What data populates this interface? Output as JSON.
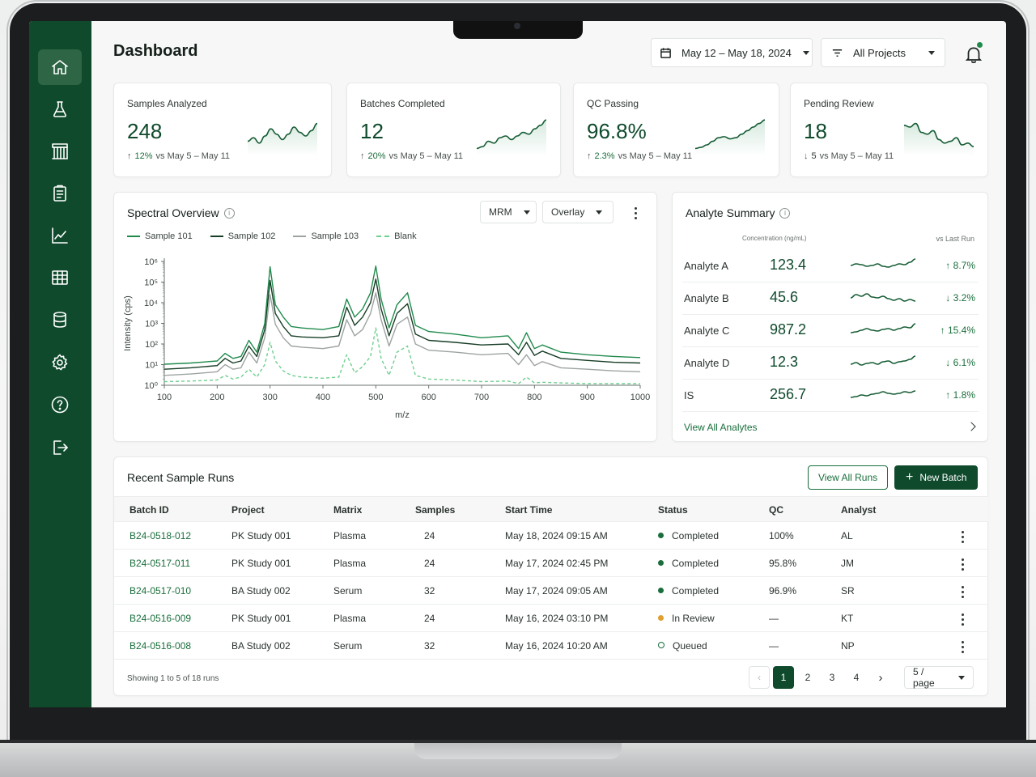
{
  "header": {
    "title": "Dashboard",
    "date_range": "May 12 – May 18, 2024",
    "project_filter": "All Projects"
  },
  "nav": {
    "items": [
      "home-icon",
      "flask-icon",
      "rack-icon",
      "clipboard-icon",
      "trend-chart-icon",
      "table-grid-icon",
      "database-icon",
      "gear-icon",
      "help-icon",
      "logout-icon"
    ],
    "active_index": 0
  },
  "kpis": [
    {
      "label": "Samples Analyzed",
      "value": "248",
      "direction": "up",
      "pct": "12%",
      "period": "vs May 5 – May 11",
      "spark": [
        0.35,
        0.45,
        0.3,
        0.5,
        0.7,
        0.55,
        0.4,
        0.55,
        0.75,
        0.6,
        0.5,
        0.65,
        0.85
      ]
    },
    {
      "label": "Batches Completed",
      "value": "12",
      "direction": "up",
      "pct": "20%",
      "period": "vs May 5 – May 11",
      "spark": [
        0.15,
        0.2,
        0.35,
        0.3,
        0.45,
        0.5,
        0.4,
        0.5,
        0.6,
        0.55,
        0.7,
        0.8,
        0.95
      ]
    },
    {
      "label": "QC Passing",
      "value": "96.8%",
      "direction": "up",
      "pct": "2.3%",
      "period": "vs May 5 – May 11",
      "spark": [
        0.15,
        0.18,
        0.25,
        0.35,
        0.45,
        0.48,
        0.42,
        0.45,
        0.55,
        0.65,
        0.75,
        0.85,
        0.95
      ]
    },
    {
      "label": "Pending Review",
      "value": "18",
      "direction": "down",
      "pct": "5",
      "period": "vs May 5 – May 11",
      "spark": [
        0.8,
        0.75,
        0.85,
        0.6,
        0.55,
        0.65,
        0.4,
        0.3,
        0.35,
        0.45,
        0.25,
        0.3,
        0.2
      ]
    }
  ],
  "spectral": {
    "title": "Spectral Overview",
    "mode": "MRM",
    "view": "Overlay"
  },
  "chart_data": {
    "type": "line",
    "x": [
      100,
      150,
      200,
      215,
      230,
      245,
      260,
      275,
      290,
      300,
      310,
      325,
      340,
      360,
      400,
      430,
      445,
      460,
      475,
      490,
      500,
      510,
      525,
      540,
      560,
      575,
      600,
      650,
      700,
      750,
      770,
      785,
      800,
      815,
      850,
      900,
      950,
      1000
    ],
    "series": [
      {
        "name": "Sample 101",
        "color": "#1f8a4c",
        "dash": false,
        "values": [
          10.5,
          12,
          15,
          35,
          20,
          25,
          150,
          40,
          1000,
          550000,
          8000,
          2000,
          700,
          600,
          500,
          700,
          15000,
          2000,
          5000,
          30000,
          600000,
          15000,
          600,
          8000,
          30000,
          800,
          400,
          300,
          200,
          250,
          60,
          350,
          60,
          90,
          40,
          30,
          25,
          22
        ]
      },
      {
        "name": "Sample 102",
        "color": "#173d26",
        "dash": false,
        "values": [
          6,
          7,
          9,
          20,
          12,
          15,
          80,
          25,
          500,
          120000,
          3000,
          700,
          250,
          220,
          200,
          250,
          6000,
          800,
          2000,
          10000,
          140000,
          5000,
          250,
          3000,
          9000,
          300,
          150,
          120,
          90,
          100,
          30,
          120,
          28,
          45,
          20,
          16,
          13,
          12
        ]
      },
      {
        "name": "Sample 103",
        "color": "#9ea3a1",
        "dash": false,
        "values": [
          3,
          3.5,
          4.5,
          10,
          6,
          7,
          40,
          12,
          200,
          25000,
          900,
          200,
          80,
          70,
          60,
          80,
          1500,
          250,
          500,
          3000,
          30000,
          1500,
          80,
          900,
          2000,
          100,
          50,
          40,
          30,
          35,
          10,
          30,
          9,
          14,
          7,
          6,
          5,
          4.5
        ]
      },
      {
        "name": "Blank",
        "color": "#6fcf8f",
        "dash": true,
        "values": [
          1.5,
          1.6,
          1.8,
          3,
          2,
          2.5,
          6,
          2.5,
          10,
          120,
          15,
          5,
          3,
          2.5,
          2.2,
          2.5,
          30,
          4,
          8,
          25,
          600,
          20,
          3,
          40,
          80,
          3,
          2,
          1.8,
          1.5,
          1.6,
          1.2,
          2.5,
          1.3,
          1.4,
          1.3,
          1.2,
          1.2,
          1.2
        ]
      }
    ],
    "xlabel": "m/z",
    "ylabel": "Intensity (cps)",
    "xlim": [
      100,
      1000
    ],
    "ylim": [
      1,
      1000000
    ],
    "y_scale": "log",
    "xticks": [
      100,
      200,
      300,
      400,
      500,
      600,
      700,
      800,
      900,
      1000
    ],
    "yticks": [
      "10⁰",
      "10¹",
      "10²",
      "10³",
      "10⁴",
      "10⁵",
      "10⁶"
    ],
    "legend_position": "top-left",
    "grid": false
  },
  "analytes": {
    "title": "Analyte Summary",
    "col_concentration": "Concentration (ng/mL)",
    "col_vs": "vs Last Run",
    "rows": [
      {
        "name": "Analyte A",
        "value": "123.4",
        "direction": "up",
        "delta": "8.7%",
        "spark": [
          0.5,
          0.6,
          0.55,
          0.45,
          0.5,
          0.6,
          0.45,
          0.4,
          0.5,
          0.6,
          0.55,
          0.7,
          0.9
        ]
      },
      {
        "name": "Analyte B",
        "value": "45.6",
        "direction": "down",
        "delta": "3.2%",
        "spark": [
          0.5,
          0.7,
          0.6,
          0.75,
          0.55,
          0.5,
          0.6,
          0.45,
          0.35,
          0.45,
          0.3,
          0.4,
          0.3
        ]
      },
      {
        "name": "Analyte C",
        "value": "987.2",
        "direction": "up",
        "delta": "15.4%",
        "spark": [
          0.35,
          0.4,
          0.5,
          0.6,
          0.5,
          0.45,
          0.55,
          0.6,
          0.5,
          0.6,
          0.7,
          0.65,
          0.9
        ]
      },
      {
        "name": "Analyte D",
        "value": "12.3",
        "direction": "down",
        "delta": "6.1%",
        "spark": [
          0.4,
          0.5,
          0.35,
          0.45,
          0.5,
          0.4,
          0.55,
          0.6,
          0.45,
          0.55,
          0.6,
          0.7,
          0.9
        ]
      },
      {
        "name": "IS",
        "value": "256.7",
        "direction": "up",
        "delta": "1.8%",
        "spark": [
          0.35,
          0.4,
          0.5,
          0.45,
          0.55,
          0.6,
          0.7,
          0.6,
          0.55,
          0.6,
          0.7,
          0.65,
          0.75
        ]
      }
    ],
    "view_all": "View All Analytes"
  },
  "runs": {
    "title": "Recent Sample Runs",
    "view_all": "View All Runs",
    "new_batch": "New Batch",
    "columns": [
      "Batch ID",
      "Project",
      "Matrix",
      "Samples",
      "Start Time",
      "Status",
      "QC",
      "Analyst"
    ],
    "rows": [
      {
        "batch": "B24-0518-012",
        "project": "PK Study 001",
        "matrix": "Plasma",
        "samples": "24",
        "start": "May 18, 2024 09:15 AM",
        "status": "Completed",
        "status_color": "#1a6e3c",
        "qc": "100%",
        "analyst": "AL"
      },
      {
        "batch": "B24-0517-011",
        "project": "PK Study 001",
        "matrix": "Plasma",
        "samples": "24",
        "start": "May 17, 2024 02:45 PM",
        "status": "Completed",
        "status_color": "#1a6e3c",
        "qc": "95.8%",
        "analyst": "JM"
      },
      {
        "batch": "B24-0517-010",
        "project": "BA Study 002",
        "matrix": "Serum",
        "samples": "32",
        "start": "May 17, 2024 09:05 AM",
        "status": "Completed",
        "status_color": "#1a6e3c",
        "qc": "96.9%",
        "analyst": "SR"
      },
      {
        "batch": "B24-0516-009",
        "project": "PK Study 001",
        "matrix": "Plasma",
        "samples": "24",
        "start": "May 16, 2024 03:10 PM",
        "status": "In Review",
        "status_color": "#e0a030",
        "qc": "—",
        "analyst": "KT"
      },
      {
        "batch": "B24-0516-008",
        "project": "BA Study 002",
        "matrix": "Serum",
        "samples": "32",
        "start": "May 16, 2024 10:20 AM",
        "status": "Queued",
        "status_color": "outline",
        "qc": "—",
        "analyst": "NP"
      }
    ],
    "footer": "Showing 1 to 5 of 18 runs",
    "pages": [
      "1",
      "2",
      "3",
      "4"
    ],
    "current_page": "1",
    "per_page": "5 / page"
  }
}
